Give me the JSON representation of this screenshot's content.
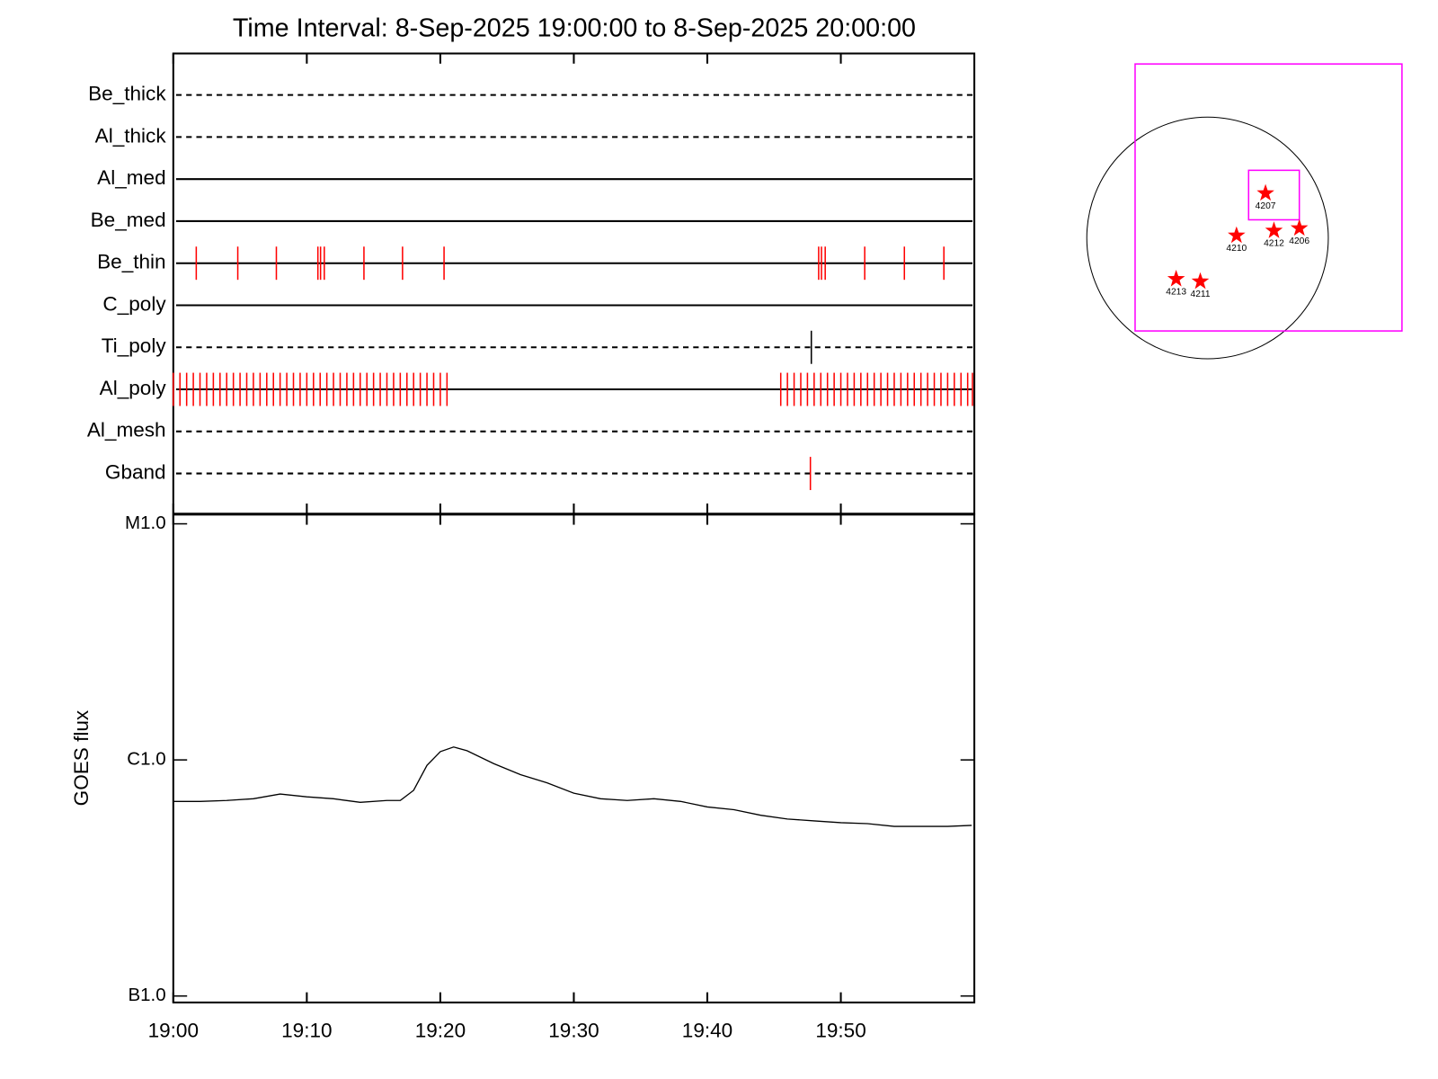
{
  "chart_data": [
    {
      "type": "eventlines",
      "title": "Time Interval:  8-Sep-2025 19:00:00 to  8-Sep-2025 20:00:00",
      "xlim": [
        0,
        60
      ],
      "xticks": [
        0,
        10,
        20,
        30,
        40,
        50
      ],
      "series": [
        {
          "name": "Be_thick",
          "style": "dashed",
          "color": "#ff0000",
          "events": []
        },
        {
          "name": "Al_thick",
          "style": "dashed",
          "color": "#ff0000",
          "events": []
        },
        {
          "name": "Al_med",
          "style": "solid",
          "color": "#ff0000",
          "events": []
        },
        {
          "name": "Be_med",
          "style": "solid",
          "color": "#ff0000",
          "events": []
        },
        {
          "name": "Be_thin",
          "style": "solid",
          "color": "#ff0000",
          "events": [
            1.72,
            4.83,
            7.72,
            10.83,
            11.03,
            11.31,
            14.28,
            17.17,
            20.28,
            48.34,
            48.55,
            48.83,
            51.79,
            54.76,
            57.72
          ]
        },
        {
          "name": "C_poly",
          "style": "solid",
          "color": "#ff0000",
          "events": []
        },
        {
          "name": "Ti_poly",
          "style": "dashed",
          "color": "#000000",
          "events": [
            47.79
          ]
        },
        {
          "name": "Al_poly",
          "style": "solid",
          "color": "#ff0000",
          "events": [
            0,
            0.5,
            1,
            1.5,
            2,
            2.5,
            3,
            3.5,
            4,
            4.5,
            5,
            5.5,
            6,
            6.5,
            7,
            7.5,
            8,
            8.5,
            9,
            9.5,
            10,
            10.5,
            11,
            11.5,
            12,
            12.5,
            13,
            13.5,
            14,
            14.5,
            15,
            15.5,
            16,
            16.5,
            17,
            17.5,
            18,
            18.5,
            19,
            19.5,
            20,
            20.5,
            45.5,
            46,
            46.5,
            47,
            47.5,
            48,
            48.5,
            49,
            49.5,
            50,
            50.5,
            51,
            51.5,
            52,
            52.5,
            53,
            53.5,
            54,
            54.5,
            55,
            55.5,
            56,
            56.5,
            57,
            57.5,
            58,
            58.5,
            59,
            59.5,
            59.86
          ]
        },
        {
          "name": "Al_mesh",
          "style": "dashed",
          "color": "#ff0000",
          "events": []
        },
        {
          "name": "Gband",
          "style": "dashed",
          "color": "#ff0000",
          "events": [
            47.72
          ]
        }
      ]
    },
    {
      "type": "line",
      "y_label": "GOES flux",
      "log_scale": true,
      "xlim": [
        0,
        60
      ],
      "xticks": [
        {
          "value": 0,
          "label": "19:00"
        },
        {
          "value": 10,
          "label": "19:10"
        },
        {
          "value": 20,
          "label": "19:20"
        },
        {
          "value": 30,
          "label": "19:30"
        },
        {
          "value": 40,
          "label": "19:40"
        },
        {
          "value": 50,
          "label": "19:50"
        }
      ],
      "ylim": [
        1e-07,
        1e-05
      ],
      "yticks": [
        {
          "value": 1e-07,
          "label": "B1.0"
        },
        {
          "value": 1e-06,
          "label": "C1.0"
        },
        {
          "value": 1e-05,
          "label": "M1.0"
        }
      ],
      "x": [
        0,
        2,
        4,
        6,
        8,
        10,
        12,
        14,
        16,
        17,
        18,
        19,
        20,
        21,
        22,
        24,
        26,
        28,
        30,
        32,
        34,
        36,
        38,
        40,
        42,
        44,
        46,
        48,
        50,
        52,
        54,
        56,
        58,
        59.8
      ],
      "series": [
        {
          "name": "GOES",
          "color": "#000000",
          "values": [
            6.67e-07,
            6.67e-07,
            6.73e-07,
            6.85e-07,
            7.17e-07,
            6.98e-07,
            6.85e-07,
            6.61e-07,
            6.73e-07,
            6.73e-07,
            7.43e-07,
            9.48e-07,
            1.084e-06,
            1.134e-06,
            1.094e-06,
            9.65e-07,
            8.66e-07,
            7.99e-07,
            7.23e-07,
            6.85e-07,
            6.73e-07,
            6.85e-07,
            6.67e-07,
            6.32e-07,
            6.15e-07,
            5.83e-07,
            5.62e-07,
            5.52e-07,
            5.42e-07,
            5.37e-07,
            5.23e-07,
            5.23e-07,
            5.23e-07,
            5.28e-07
          ]
        }
      ]
    },
    {
      "type": "scatter",
      "series": [
        {
          "name": "regions",
          "color": "#ff0000",
          "labels": [
            "4207",
            "4210",
            "4212",
            "4206",
            "4213",
            "4211"
          ],
          "x": [
            0.48,
            0.24,
            0.55,
            0.76,
            -0.26,
            -0.06
          ],
          "values": [
            0.37,
            0.02,
            0.06,
            0.08,
            -0.34,
            -0.36
          ]
        }
      ],
      "boxes": [
        {
          "color": "#ff00ff",
          "x": [
            -0.6,
            1.61
          ],
          "y": [
            -0.77,
            1.44
          ]
        },
        {
          "color": "#ff00ff",
          "x": [
            0.34,
            0.76
          ],
          "y": [
            0.15,
            0.56
          ]
        }
      ]
    }
  ]
}
